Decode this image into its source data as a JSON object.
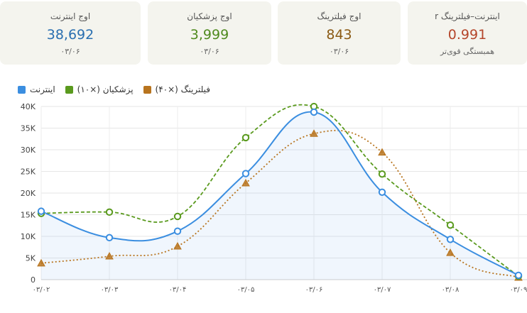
{
  "cards": [
    {
      "label": "اینترنت–فیلترینگ r",
      "value": "0.991",
      "sub": "همبستگی قوی‌تر",
      "color": "#b5462b"
    },
    {
      "label": "اوج فیلترینگ",
      "value": "843",
      "sub": "۰۳/۰۶",
      "color": "#8a5a14"
    },
    {
      "label": "اوج پزشکیان",
      "value": "3,999",
      "sub": "۰۳/۰۶",
      "color": "#4f8a1e"
    },
    {
      "label": "اوج اینترنت",
      "value": "38,692",
      "sub": "۰۳/۰۶",
      "color": "#2a6fb0"
    }
  ],
  "chart_data": {
    "type": "line",
    "categories": [
      "۰۳/۰۲",
      "۰۳/۰۳",
      "۰۳/۰۴",
      "۰۳/۰۵",
      "۰۳/۰۶",
      "۰۳/۰۷",
      "۰۳/۰۸",
      "۰۳/۰۹"
    ],
    "ylim": [
      0,
      40000
    ],
    "yticks": [
      "0",
      "5K",
      "10K",
      "15K",
      "20K",
      "25K",
      "30K",
      "35K",
      "40K"
    ],
    "grid": true,
    "legend_position": "top-left",
    "series": [
      {
        "name": "اینترنت",
        "color": "#3b8ee0",
        "style": "solid",
        "marker": "circle",
        "values": [
          15800,
          9700,
          11200,
          24500,
          38692,
          20200,
          9300,
          1000
        ]
      },
      {
        "name": "پزشکیان (×۱۰)",
        "color": "#5a9a1e",
        "style": "dashed",
        "marker": "circle",
        "values": [
          15300,
          15600,
          14600,
          32800,
          39990,
          24400,
          12600,
          800
        ]
      },
      {
        "name": "فیلترینگ (×۴۰)",
        "color": "#b8741e",
        "style": "dotted",
        "marker": "triangle",
        "values": [
          3800,
          5400,
          7700,
          22300,
          33720,
          29400,
          6200,
          500
        ]
      }
    ]
  }
}
